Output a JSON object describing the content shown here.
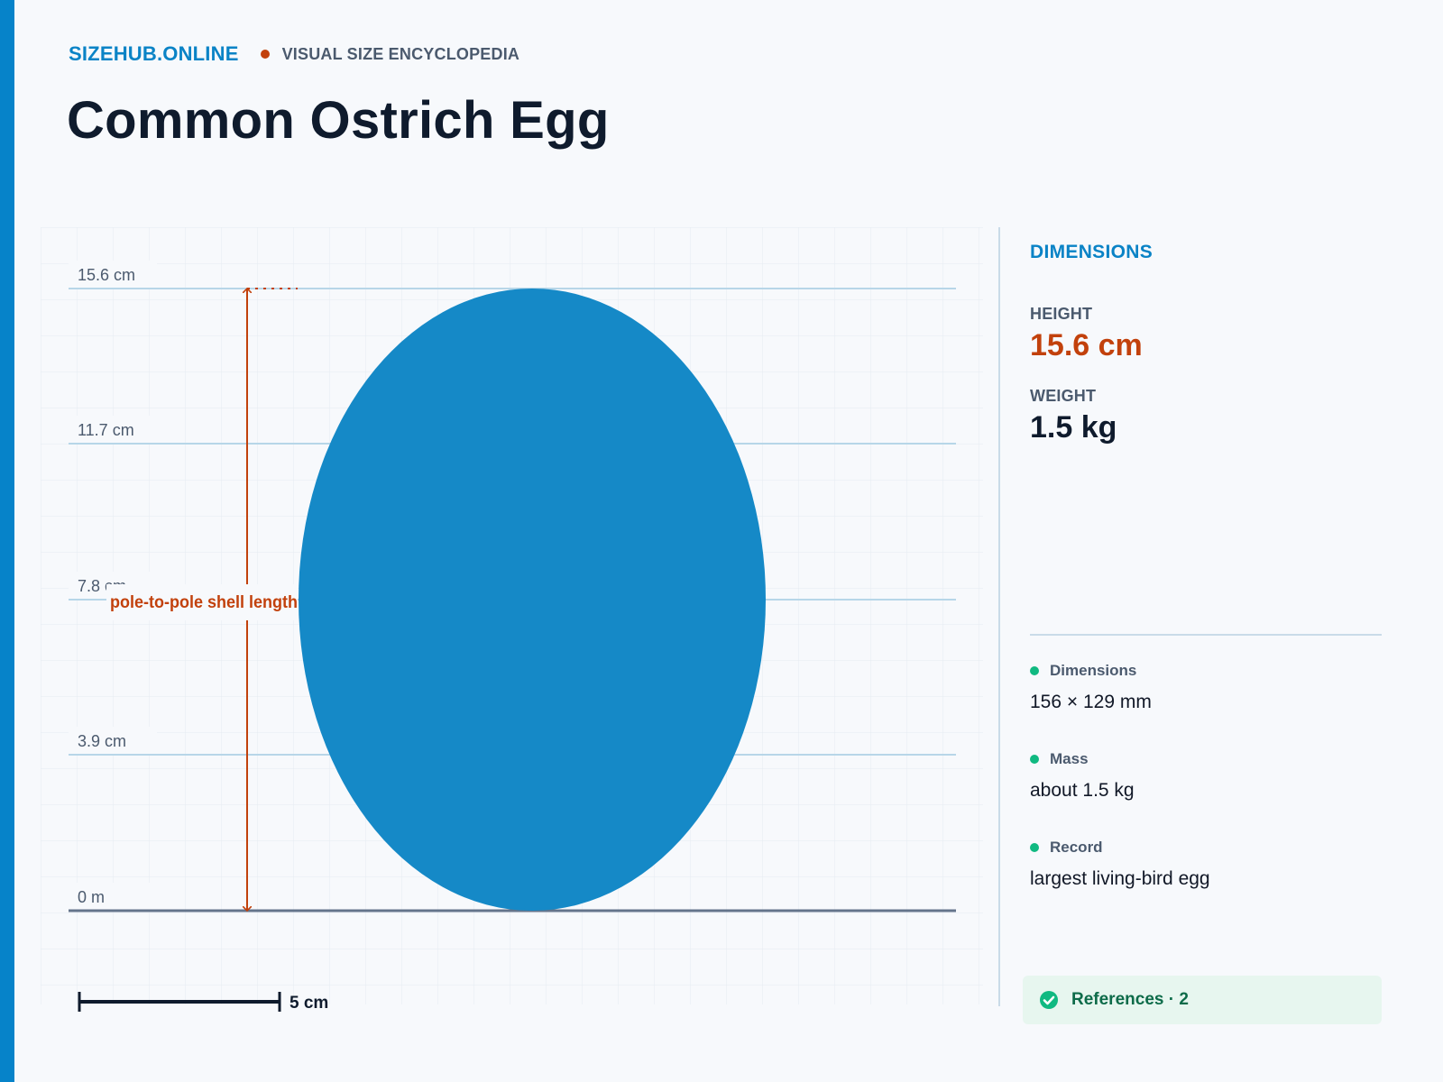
{
  "header": {
    "brand": "SIZEHUB.ONLINE",
    "tagline": "VISUAL SIZE ENCYCLOPEDIA",
    "title": "Common Ostrich Egg"
  },
  "diagram": {
    "axis_ticks": [
      "15.6 cm",
      "11.7 cm",
      "7.8 cm",
      "3.9 cm",
      "0 m"
    ],
    "measure_label": "pole-to-pole shell length",
    "scale_bar_label": "5 cm",
    "scale_bar_value_cm": 5,
    "object_height_cm": 15.6,
    "object_width_cm": 12.9,
    "colors": {
      "object": "#1589c7",
      "measure": "#c2410c",
      "gridline": "#b7d6e8",
      "baseline": "#64748b"
    }
  },
  "panel": {
    "heading": "DIMENSIONS",
    "height_label": "HEIGHT",
    "height_value": "15.6 cm",
    "weight_label": "WEIGHT",
    "weight_value": "1.5 kg",
    "facts": [
      {
        "label": "Dimensions",
        "value": "156 × 129 mm"
      },
      {
        "label": "Mass",
        "value": "about 1.5 kg"
      },
      {
        "label": "Record",
        "value": "largest living-bird egg"
      }
    ],
    "references": "References · 2"
  }
}
